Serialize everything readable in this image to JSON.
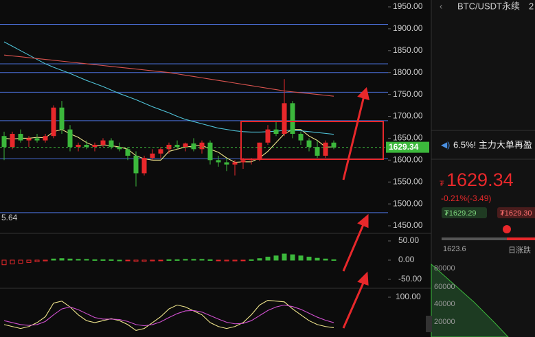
{
  "chart_data": {
    "type": "candlestick",
    "candles": [
      {
        "o": 1655,
        "h": 1665,
        "l": 1600,
        "c": 1630
      },
      {
        "o": 1630,
        "h": 1665,
        "l": 1625,
        "c": 1660
      },
      {
        "o": 1660,
        "h": 1670,
        "l": 1640,
        "c": 1645
      },
      {
        "o": 1645,
        "h": 1655,
        "l": 1630,
        "c": 1650
      },
      {
        "o": 1650,
        "h": 1660,
        "l": 1640,
        "c": 1645
      },
      {
        "o": 1645,
        "h": 1660,
        "l": 1640,
        "c": 1655
      },
      {
        "o": 1655,
        "h": 1725,
        "l": 1650,
        "c": 1720
      },
      {
        "o": 1720,
        "h": 1735,
        "l": 1660,
        "c": 1670
      },
      {
        "o": 1670,
        "h": 1680,
        "l": 1620,
        "c": 1630
      },
      {
        "o": 1630,
        "h": 1640,
        "l": 1620,
        "c": 1635
      },
      {
        "o": 1635,
        "h": 1645,
        "l": 1625,
        "c": 1630
      },
      {
        "o": 1630,
        "h": 1640,
        "l": 1620,
        "c": 1635
      },
      {
        "o": 1635,
        "h": 1650,
        "l": 1630,
        "c": 1645
      },
      {
        "o": 1645,
        "h": 1650,
        "l": 1625,
        "c": 1630
      },
      {
        "o": 1630,
        "h": 1640,
        "l": 1620,
        "c": 1625
      },
      {
        "o": 1625,
        "h": 1630,
        "l": 1600,
        "c": 1610
      },
      {
        "o": 1610,
        "h": 1620,
        "l": 1540,
        "c": 1570
      },
      {
        "o": 1570,
        "h": 1610,
        "l": 1565,
        "c": 1605
      },
      {
        "o": 1605,
        "h": 1625,
        "l": 1600,
        "c": 1615
      },
      {
        "o": 1615,
        "h": 1630,
        "l": 1605,
        "c": 1625
      },
      {
        "o": 1625,
        "h": 1640,
        "l": 1615,
        "c": 1635
      },
      {
        "o": 1635,
        "h": 1645,
        "l": 1625,
        "c": 1630
      },
      {
        "o": 1630,
        "h": 1640,
        "l": 1620,
        "c": 1638
      },
      {
        "o": 1638,
        "h": 1650,
        "l": 1620,
        "c": 1625
      },
      {
        "o": 1625,
        "h": 1645,
        "l": 1615,
        "c": 1640
      },
      {
        "o": 1640,
        "h": 1645,
        "l": 1590,
        "c": 1600
      },
      {
        "o": 1600,
        "h": 1610,
        "l": 1585,
        "c": 1595
      },
      {
        "o": 1595,
        "h": 1605,
        "l": 1575,
        "c": 1590
      },
      {
        "o": 1590,
        "h": 1600,
        "l": 1565,
        "c": 1595
      },
      {
        "o": 1595,
        "h": 1605,
        "l": 1580,
        "c": 1600
      },
      {
        "o": 1600,
        "h": 1605,
        "l": 1590,
        "c": 1602
      },
      {
        "o": 1602,
        "h": 1640,
        "l": 1598,
        "c": 1640
      },
      {
        "o": 1640,
        "h": 1680,
        "l": 1635,
        "c": 1670
      },
      {
        "o": 1670,
        "h": 1690,
        "l": 1655,
        "c": 1660
      },
      {
        "o": 1660,
        "h": 1785,
        "l": 1655,
        "c": 1730
      },
      {
        "o": 1730,
        "h": 1735,
        "l": 1650,
        "c": 1660
      },
      {
        "o": 1660,
        "h": 1665,
        "l": 1635,
        "c": 1645
      },
      {
        "o": 1645,
        "h": 1650,
        "l": 1620,
        "c": 1630
      },
      {
        "o": 1630,
        "h": 1645,
        "l": 1605,
        "c": 1610
      },
      {
        "o": 1610,
        "h": 1645,
        "l": 1605,
        "c": 1640
      },
      {
        "o": 1640,
        "h": 1645,
        "l": 1625,
        "c": 1629.34
      }
    ],
    "up_color": "#e8282b",
    "down_color": "#3cb83c",
    "ma": [
      {
        "color": "#f0e68c",
        "values": [
          1650,
          1648,
          1650,
          1650,
          1652,
          1651,
          1665,
          1670,
          1660,
          1652,
          1640,
          1632,
          1635,
          1633,
          1630,
          1625,
          1610,
          1603,
          1600,
          1600,
          1620,
          1625,
          1630,
          1632,
          1634,
          1625,
          1618,
          1605,
          1595,
          1596,
          1596,
          1605,
          1620,
          1640,
          1660,
          1670,
          1670,
          1655,
          1645,
          1630,
          1630
        ]
      },
      {
        "color": "#4fc3d9",
        "values": [
          1870,
          1860,
          1850,
          1840,
          1830,
          1820,
          1812,
          1805,
          1798,
          1790,
          1782,
          1775,
          1768,
          1760,
          1752,
          1745,
          1738,
          1730,
          1722,
          1715,
          1708,
          1700,
          1693,
          1688,
          1683,
          1678,
          1673,
          1670,
          1667,
          1665,
          1664,
          1664,
          1665,
          1666,
          1668,
          1668,
          1667,
          1665,
          1663,
          1661,
          1659
        ]
      },
      {
        "color": "#d9534f",
        "values": [
          1840,
          1838,
          1836,
          1834,
          1832,
          1830,
          1828,
          1826,
          1824,
          1822,
          1820,
          1818,
          1816,
          1814,
          1812,
          1810,
          1808,
          1806,
          1804,
          1802,
          1800,
          1797,
          1794,
          1791,
          1788,
          1785,
          1782,
          1779,
          1776,
          1773,
          1770,
          1767,
          1764,
          1761,
          1758,
          1756,
          1754,
          1752,
          1750,
          1748,
          1746
        ]
      }
    ],
    "levels": [
      1910,
      1820,
      1800,
      1755,
      1690,
      1603,
      1480
    ],
    "level_color": "#4a6fd8",
    "ylim": [
      1450,
      1950
    ],
    "yticks": [
      {
        "value": 1950,
        "label": "1950.00"
      },
      {
        "value": 1900,
        "label": "1900.00"
      },
      {
        "value": 1850,
        "label": "1850.00"
      },
      {
        "value": 1800,
        "label": "1800.00"
      },
      {
        "value": 1750,
        "label": "1750.00"
      },
      {
        "value": 1700,
        "label": "1700.00"
      },
      {
        "value": 1650,
        "label": "1650.00"
      },
      {
        "value": 1600,
        "label": "1600.00"
      },
      {
        "value": 1550,
        "label": "1550.00"
      },
      {
        "value": 1500,
        "label": "1500.00"
      },
      {
        "value": 1450,
        "label": "1450.00"
      }
    ],
    "last_price": 1629.34,
    "corner_label": "5.64",
    "macd": {
      "values": [
        -12,
        -10,
        -8,
        -6,
        -4,
        -2,
        3,
        4,
        3,
        2,
        2,
        1,
        1,
        1,
        0,
        -1,
        -3,
        -3,
        -2,
        -1,
        1,
        1,
        2,
        2,
        2,
        1,
        -1,
        -2,
        -2,
        -1,
        1,
        4,
        8,
        11,
        16,
        14,
        11,
        8,
        5,
        3,
        1
      ],
      "ylim": [
        -50,
        50
      ],
      "yticks": [
        {
          "value": 50,
          "label": "50.00"
        },
        {
          "value": 0,
          "label": "0.00"
        },
        {
          "value": -50,
          "label": "-50.00"
        }
      ]
    },
    "kdj": {
      "series": [
        {
          "color": "#f0e68c",
          "values": [
            30,
            25,
            20,
            25,
            35,
            50,
            85,
            90,
            75,
            55,
            40,
            35,
            40,
            45,
            40,
            30,
            15,
            20,
            35,
            50,
            70,
            80,
            75,
            65,
            55,
            35,
            25,
            20,
            25,
            35,
            55,
            80,
            92,
            90,
            88,
            70,
            55,
            40,
            30,
            25,
            22
          ]
        },
        {
          "color": "#d050d0",
          "values": [
            40,
            35,
            30,
            28,
            30,
            38,
            55,
            70,
            75,
            68,
            58,
            48,
            44,
            44,
            43,
            38,
            30,
            27,
            30,
            37,
            48,
            58,
            65,
            66,
            62,
            53,
            44,
            36,
            32,
            33,
            40,
            53,
            66,
            75,
            80,
            76,
            69,
            59,
            49,
            41,
            35
          ]
        }
      ],
      "ylim": [
        0,
        100
      ],
      "yticks": [
        {
          "value": 100,
          "label": "100.00"
        }
      ]
    }
  },
  "ticker": {
    "symbol": "BTC/USDT永续",
    "corner": "2",
    "news": "6.5%! 主力大单再盈",
    "currency": "₮",
    "price": "1629.34",
    "change": "-0.21%(-3.49)",
    "bid": "₮1629.29",
    "ask": "₮1629.30",
    "low": "1623.6",
    "range_label": "日涨跌",
    "depth_ticks": [
      "80000",
      "60000",
      "40000",
      "20000"
    ]
  }
}
